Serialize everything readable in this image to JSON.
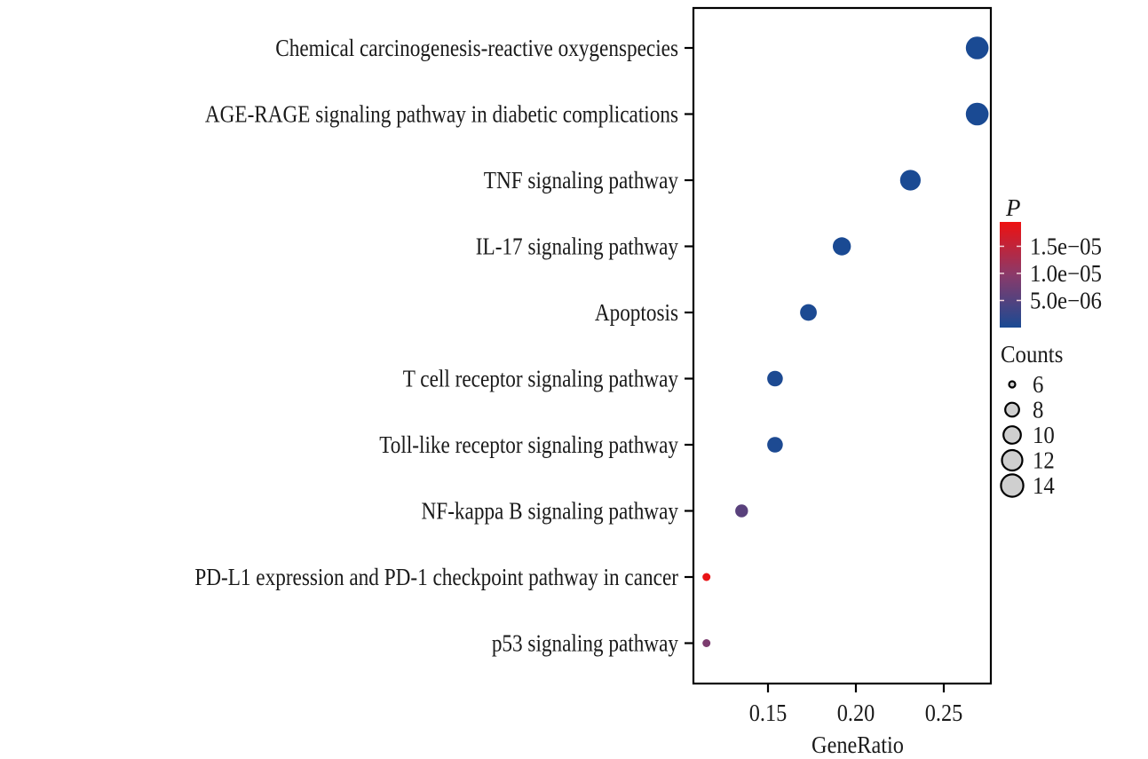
{
  "chart_data": {
    "type": "scatter",
    "subtype": "bubble-dotplot",
    "title": "",
    "xlabel": "GeneRatio",
    "ylabel": "",
    "xlim": [
      0.1,
      0.277
    ],
    "xticks": [
      0.15,
      0.2,
      0.25
    ],
    "xtick_labels": [
      "0.15",
      "0.20",
      "0.25"
    ],
    "grid": false,
    "categories": [
      "Chemical carcinogenesis-reactive oxygenspecies",
      "AGE-RAGE signaling pathway in diabetic complications",
      "TNF signaling pathway",
      "IL-17 signaling pathway",
      "Apoptosis",
      "T cell receptor signaling pathway",
      "Toll-like receptor signaling pathway",
      "NF-kappa B signaling pathway",
      "PD-L1 expression and PD-1 checkpoint pathway in cancer",
      "p53 signaling pathway"
    ],
    "points": [
      {
        "term": "Chemical carcinogenesis-reactive oxygenspecies",
        "gene_ratio": 0.269,
        "count": 14,
        "p": 1e-10
      },
      {
        "term": "AGE-RAGE signaling pathway in diabetic complications",
        "gene_ratio": 0.269,
        "count": 14,
        "p": 1e-10
      },
      {
        "term": "TNF signaling pathway",
        "gene_ratio": 0.231,
        "count": 12,
        "p": 1e-09
      },
      {
        "term": "IL-17 signaling pathway",
        "gene_ratio": 0.192,
        "count": 10,
        "p": 1e-08
      },
      {
        "term": "Apoptosis",
        "gene_ratio": 0.173,
        "count": 9,
        "p": 2e-07
      },
      {
        "term": "T cell receptor signaling pathway",
        "gene_ratio": 0.154,
        "count": 8,
        "p": 3e-07
      },
      {
        "term": "Toll-like receptor signaling pathway",
        "gene_ratio": 0.154,
        "count": 8,
        "p": 3e-07
      },
      {
        "term": "NF-kappa B signaling pathway",
        "gene_ratio": 0.135,
        "count": 7,
        "p": 5.5e-06
      },
      {
        "term": "PD-L1 expression and PD-1 checkpoint pathway in cancer",
        "gene_ratio": 0.115,
        "count": 6,
        "p": 1.9e-05
      },
      {
        "term": "p53 signaling pathway",
        "gene_ratio": 0.115,
        "count": 6,
        "p": 8.5e-06
      }
    ],
    "color_legend": {
      "title": "P",
      "low_color": "#1a4a93",
      "high_color": "#ee1111",
      "range": [
        0,
        1.95e-05
      ],
      "ticks": [
        1.5e-05,
        1e-05,
        5e-06
      ],
      "tick_labels": [
        "1.5e−05",
        "1.0e−05",
        "5.0e−06"
      ],
      "placement": "right"
    },
    "size_legend": {
      "title": "Counts",
      "values": [
        6,
        8,
        10,
        12,
        14
      ],
      "labels": [
        "6",
        "8",
        "10",
        "12",
        "14"
      ],
      "placement": "right"
    }
  }
}
